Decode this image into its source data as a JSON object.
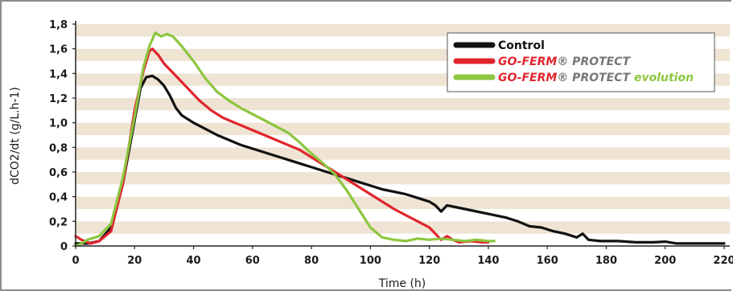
{
  "chart_data": {
    "type": "line",
    "xlabel": "Time (h)",
    "ylabel": "dCO2/dt (g/L.h-1)",
    "xlim": [
      0,
      220
    ],
    "ylim": [
      0,
      1.8
    ],
    "x_ticks": [
      "0",
      "20",
      "40",
      "60",
      "80",
      "100",
      "120",
      "140",
      "160",
      "180",
      "200",
      "220"
    ],
    "y_ticks": [
      "0",
      "0,2",
      "0,4",
      "0,6",
      "0,8",
      "1,0",
      "1,2",
      "1,4",
      "1,6",
      "1,8"
    ],
    "background": "alternating beige/white horizontal bands every 0.1",
    "legend_position": "top-right",
    "legend": [
      {
        "name": "Control",
        "color": "#111111"
      },
      {
        "name": "GO-FERM® PROTECT",
        "color": "#e0252d",
        "parts": [
          {
            "text": "GO-FERM",
            "style": "red-bold-italic"
          },
          {
            "text": "®",
            "style": "grey"
          },
          {
            "text": " PROTECT",
            "style": "grey-bold-italic"
          }
        ]
      },
      {
        "name": "GO-FERM® PROTECT evolution",
        "color": "#8dc63f",
        "parts": [
          {
            "text": "GO-FERM",
            "style": "red-bold-italic"
          },
          {
            "text": "®",
            "style": "grey"
          },
          {
            "text": " PROTECT ",
            "style": "grey-bold-italic"
          },
          {
            "text": "evolution",
            "style": "green-bold-italic"
          }
        ]
      }
    ],
    "series": [
      {
        "name": "Control",
        "color": "#111111",
        "points": [
          [
            0,
            0.02
          ],
          [
            4,
            0.02
          ],
          [
            8,
            0.04
          ],
          [
            12,
            0.15
          ],
          [
            16,
            0.5
          ],
          [
            20,
            1.02
          ],
          [
            22,
            1.28
          ],
          [
            24,
            1.37
          ],
          [
            26,
            1.38
          ],
          [
            28,
            1.35
          ],
          [
            30,
            1.3
          ],
          [
            32,
            1.22
          ],
          [
            34,
            1.12
          ],
          [
            36,
            1.06
          ],
          [
            40,
            1.0
          ],
          [
            44,
            0.95
          ],
          [
            48,
            0.9
          ],
          [
            52,
            0.86
          ],
          [
            56,
            0.82
          ],
          [
            60,
            0.79
          ],
          [
            64,
            0.76
          ],
          [
            68,
            0.73
          ],
          [
            72,
            0.7
          ],
          [
            76,
            0.67
          ],
          [
            80,
            0.64
          ],
          [
            84,
            0.61
          ],
          [
            88,
            0.58
          ],
          [
            92,
            0.55
          ],
          [
            96,
            0.52
          ],
          [
            100,
            0.49
          ],
          [
            104,
            0.46
          ],
          [
            108,
            0.44
          ],
          [
            112,
            0.42
          ],
          [
            116,
            0.39
          ],
          [
            120,
            0.36
          ],
          [
            122,
            0.33
          ],
          [
            124,
            0.28
          ],
          [
            126,
            0.33
          ],
          [
            130,
            0.31
          ],
          [
            134,
            0.29
          ],
          [
            140,
            0.26
          ],
          [
            146,
            0.23
          ],
          [
            150,
            0.2
          ],
          [
            154,
            0.16
          ],
          [
            158,
            0.15
          ],
          [
            162,
            0.12
          ],
          [
            166,
            0.1
          ],
          [
            170,
            0.07
          ],
          [
            172,
            0.1
          ],
          [
            174,
            0.05
          ],
          [
            178,
            0.04
          ],
          [
            184,
            0.04
          ],
          [
            190,
            0.03
          ],
          [
            196,
            0.03
          ],
          [
            200,
            0.035
          ],
          [
            204,
            0.02
          ],
          [
            210,
            0.02
          ],
          [
            220,
            0.02
          ]
        ]
      },
      {
        "name": "GO-FERM® PROTECT",
        "color": "#e0252d",
        "points": [
          [
            0,
            0.08
          ],
          [
            2,
            0.05
          ],
          [
            5,
            0.02
          ],
          [
            8,
            0.04
          ],
          [
            12,
            0.12
          ],
          [
            16,
            0.5
          ],
          [
            20,
            1.1
          ],
          [
            23,
            1.42
          ],
          [
            25,
            1.58
          ],
          [
            26,
            1.6
          ],
          [
            28,
            1.55
          ],
          [
            30,
            1.48
          ],
          [
            34,
            1.38
          ],
          [
            38,
            1.28
          ],
          [
            42,
            1.18
          ],
          [
            46,
            1.1
          ],
          [
            50,
            1.04
          ],
          [
            54,
            1.0
          ],
          [
            60,
            0.94
          ],
          [
            64,
            0.9
          ],
          [
            68,
            0.86
          ],
          [
            72,
            0.82
          ],
          [
            76,
            0.78
          ],
          [
            80,
            0.72
          ],
          [
            84,
            0.66
          ],
          [
            88,
            0.6
          ],
          [
            92,
            0.54
          ],
          [
            96,
            0.48
          ],
          [
            100,
            0.42
          ],
          [
            104,
            0.36
          ],
          [
            108,
            0.3
          ],
          [
            112,
            0.25
          ],
          [
            116,
            0.2
          ],
          [
            120,
            0.15
          ],
          [
            122,
            0.1
          ],
          [
            124,
            0.05
          ],
          [
            126,
            0.08
          ],
          [
            128,
            0.05
          ],
          [
            130,
            0.03
          ],
          [
            134,
            0.04
          ],
          [
            138,
            0.03
          ],
          [
            140,
            0.03
          ]
        ]
      },
      {
        "name": "GO-FERM® PROTECT evolution",
        "color": "#8dc63f",
        "points": [
          [
            0,
            0.0
          ],
          [
            2,
            0.02
          ],
          [
            4,
            0.05
          ],
          [
            8,
            0.08
          ],
          [
            12,
            0.18
          ],
          [
            16,
            0.55
          ],
          [
            20,
            1.05
          ],
          [
            23,
            1.45
          ],
          [
            25,
            1.62
          ],
          [
            27,
            1.73
          ],
          [
            29,
            1.7
          ],
          [
            31,
            1.72
          ],
          [
            33,
            1.7
          ],
          [
            36,
            1.62
          ],
          [
            40,
            1.5
          ],
          [
            44,
            1.36
          ],
          [
            48,
            1.25
          ],
          [
            52,
            1.18
          ],
          [
            56,
            1.12
          ],
          [
            60,
            1.07
          ],
          [
            64,
            1.02
          ],
          [
            68,
            0.97
          ],
          [
            72,
            0.92
          ],
          [
            76,
            0.84
          ],
          [
            80,
            0.75
          ],
          [
            84,
            0.67
          ],
          [
            88,
            0.58
          ],
          [
            92,
            0.45
          ],
          [
            96,
            0.3
          ],
          [
            100,
            0.15
          ],
          [
            104,
            0.07
          ],
          [
            108,
            0.05
          ],
          [
            112,
            0.04
          ],
          [
            116,
            0.06
          ],
          [
            120,
            0.05
          ],
          [
            124,
            0.06
          ],
          [
            128,
            0.05
          ],
          [
            132,
            0.04
          ],
          [
            136,
            0.05
          ],
          [
            140,
            0.04
          ],
          [
            142,
            0.04
          ]
        ]
      }
    ]
  }
}
